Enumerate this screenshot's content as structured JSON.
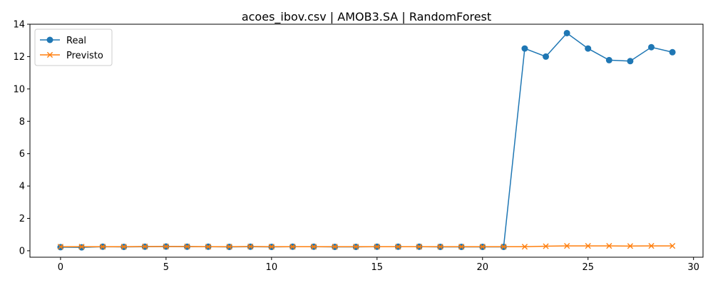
{
  "chart_data": {
    "type": "line",
    "title": "acoes_ibov.csv | AMOB3.SA | RandomForest",
    "xlabel": "",
    "ylabel": "",
    "xlim": [
      -1.45,
      30.45
    ],
    "ylim": [
      -0.4,
      14.0
    ],
    "xticks": [
      0,
      5,
      10,
      15,
      20,
      25,
      30
    ],
    "yticks": [
      0,
      2,
      4,
      6,
      8,
      10,
      12,
      14
    ],
    "grid": false,
    "legend": "upper-left",
    "x": [
      0,
      1,
      2,
      3,
      4,
      5,
      6,
      7,
      8,
      9,
      10,
      11,
      12,
      13,
      14,
      15,
      16,
      17,
      18,
      19,
      20,
      21,
      22,
      23,
      24,
      25,
      26,
      27,
      28,
      29
    ],
    "series": [
      {
        "name": "Real",
        "color": "#1f77b4",
        "marker": "circle",
        "values": [
          0.22,
          0.21,
          0.25,
          0.24,
          0.25,
          0.26,
          0.25,
          0.25,
          0.24,
          0.25,
          0.24,
          0.25,
          0.25,
          0.24,
          0.24,
          0.25,
          0.25,
          0.25,
          0.24,
          0.24,
          0.24,
          0.24,
          12.5,
          12.0,
          13.45,
          12.5,
          11.78,
          11.72,
          12.58,
          12.27
        ]
      },
      {
        "name": "Previsto",
        "color": "#ff7f0e",
        "marker": "x",
        "values": [
          0.25,
          0.25,
          0.25,
          0.25,
          0.26,
          0.26,
          0.26,
          0.25,
          0.25,
          0.26,
          0.25,
          0.25,
          0.25,
          0.25,
          0.25,
          0.25,
          0.25,
          0.25,
          0.25,
          0.25,
          0.25,
          0.25,
          0.25,
          0.28,
          0.3,
          0.3,
          0.3,
          0.29,
          0.3,
          0.3
        ]
      }
    ]
  }
}
